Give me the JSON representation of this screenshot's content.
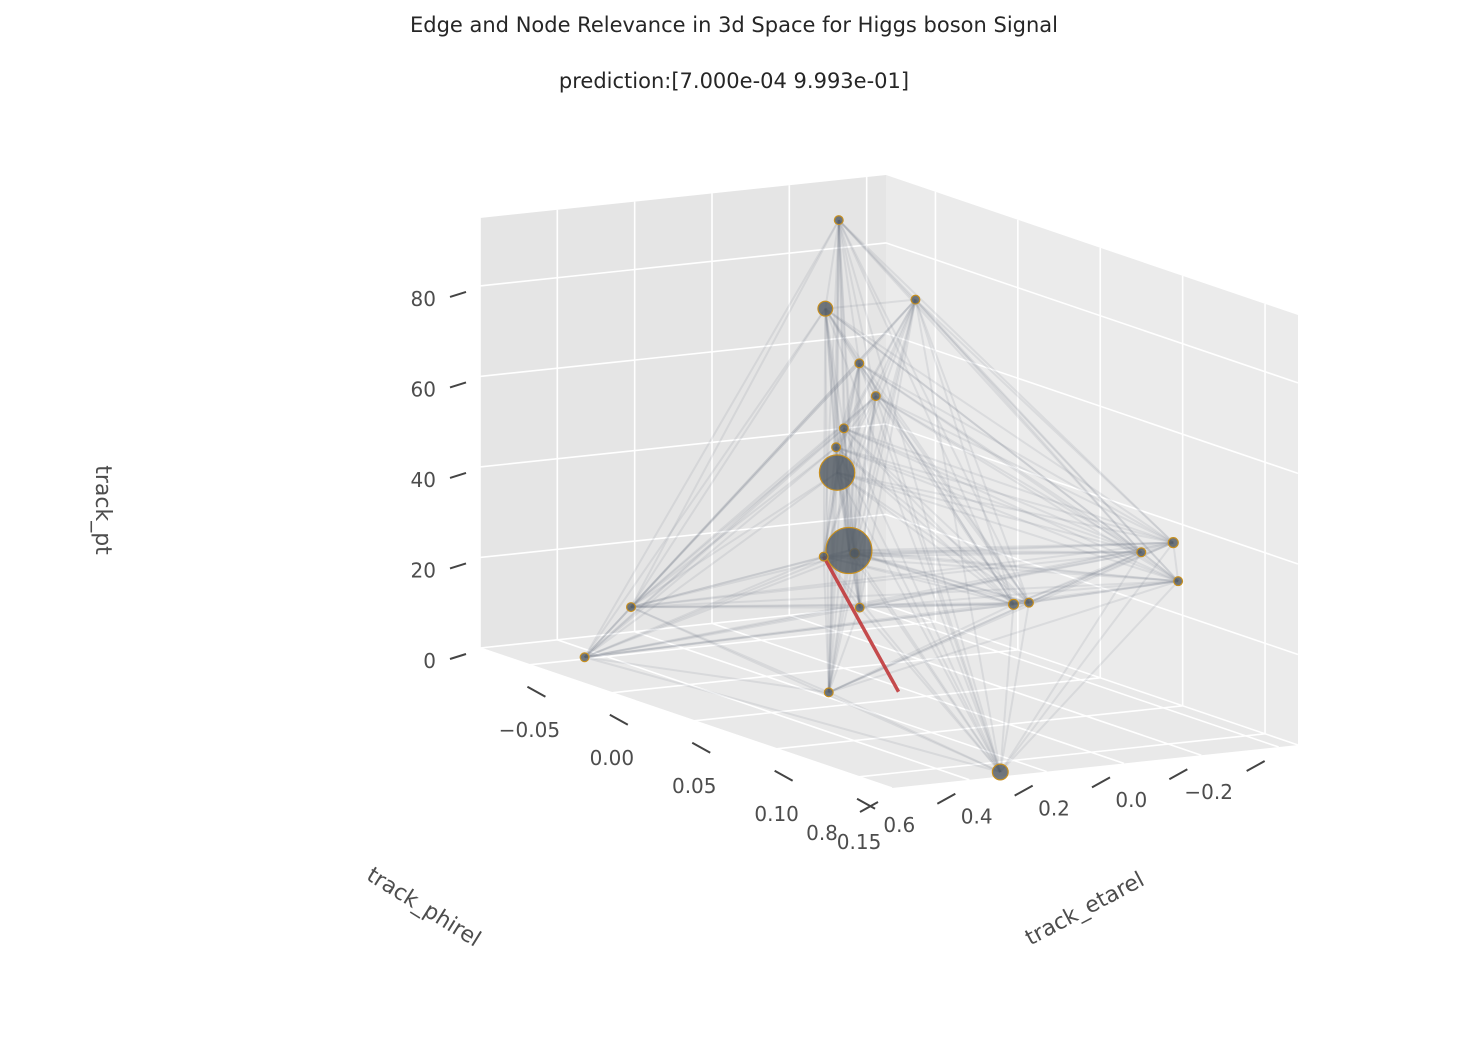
{
  "chart_data": {
    "type": "scatter",
    "projection": "3d",
    "title": "Edge and Node Relevance in 3d Space for Higgs boson Signal",
    "subtitle": "prediction:[7.000e-04 9.993e-01]",
    "xlabel": "track_etarel",
    "ylabel": "track_phirel",
    "zlabel": "track_pt",
    "xlim": [
      -0.08,
      0.17
    ],
    "ylim": [
      -0.25,
      0.8
    ],
    "zlim": [
      0,
      95
    ],
    "xticks": [
      "−0.05",
      "0.00",
      "0.05",
      "0.10",
      "0.15"
    ],
    "yticks": [
      "−0.2",
      "0.0",
      "0.2",
      "0.4",
      "0.6",
      "0.8"
    ],
    "zticks": [
      "0",
      "20",
      "40",
      "60",
      "80"
    ],
    "grid": true,
    "colors": {
      "pane_back": "#e5e5e5",
      "pane_side": "#ebebeb",
      "pane_floor": "#e9e9e9",
      "grid": "#ffffff",
      "edge": "#6e7780",
      "highlight_edge": "#c0393b",
      "node_fill": "#4f5860",
      "node_stroke": "#c8901f"
    },
    "nodes": [
      {
        "eta": -0.05,
        "phi": 0.0,
        "pt": 91,
        "relevance": 0.12
      },
      {
        "eta": 0.02,
        "phi": 0.1,
        "pt": 83,
        "relevance": 0.12
      },
      {
        "eta": -0.03,
        "phi": 0.12,
        "pt": 75,
        "relevance": 0.6
      },
      {
        "eta": 0.0,
        "phi": 0.16,
        "pt": 67,
        "relevance": 0.12
      },
      {
        "eta": 0.01,
        "phi": 0.16,
        "pt": 61,
        "relevance": 0.12
      },
      {
        "eta": 0.0,
        "phi": 0.2,
        "pt": 53,
        "relevance": 0.12
      },
      {
        "eta": 0.01,
        "phi": 0.26,
        "pt": 45,
        "relevance": 5.0
      },
      {
        "eta": 0.03,
        "phi": 0.3,
        "pt": 30,
        "relevance": 0.15
      },
      {
        "eta": 0.05,
        "phi": 0.4,
        "pt": 34,
        "relevance": 9.0
      },
      {
        "eta": 0.08,
        "phi": 0.5,
        "pt": 26,
        "relevance": 0.12
      },
      {
        "eta": 0.16,
        "phi": 0.03,
        "pt": 46,
        "relevance": 0.18
      },
      {
        "eta": 0.15,
        "phi": 0.07,
        "pt": 43,
        "relevance": 0.12
      },
      {
        "eta": 0.17,
        "phi": 0.06,
        "pt": 39,
        "relevance": 0.12
      },
      {
        "eta": 0.11,
        "phi": 0.23,
        "pt": 28,
        "relevance": 0.18
      },
      {
        "eta": 0.11,
        "phi": 0.19,
        "pt": 28,
        "relevance": 0.12
      },
      {
        "eta": 0.17,
        "phi": 0.52,
        "pt": 1,
        "relevance": 0.7
      },
      {
        "eta": 0.08,
        "phi": 0.58,
        "pt": 8,
        "relevance": 0.12
      },
      {
        "eta": -0.04,
        "phi": 0.58,
        "pt": 12,
        "relevance": 0.12
      },
      {
        "eta": -0.04,
        "phi": 0.7,
        "pt": 2,
        "relevance": 0.12
      },
      {
        "eta": 0.03,
        "phi": 0.38,
        "pt": 30,
        "relevance": 0.12
      },
      {
        "eta": 0.0,
        "phi": 0.22,
        "pt": 49,
        "relevance": 0.12
      }
    ],
    "highlighted_edge": {
      "from": {
        "eta": 0.12,
        "phi": 0.57,
        "pt": 13
      },
      "to": {
        "eta": 0.03,
        "phi": 0.38,
        "pt": 30
      },
      "relevance": 1.0
    }
  }
}
